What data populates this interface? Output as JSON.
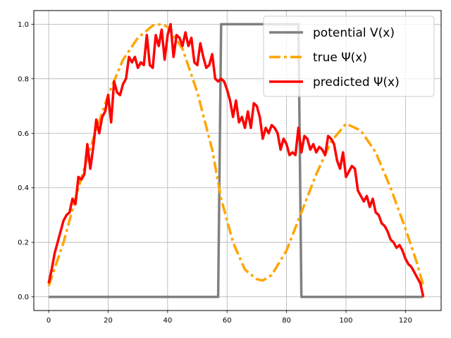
{
  "chart_data": {
    "type": "line",
    "title": "",
    "xlabel": "",
    "ylabel": "",
    "xlim": [
      -5,
      132
    ],
    "ylim": [
      -0.05,
      1.05
    ],
    "x_ticks": [
      0,
      20,
      40,
      60,
      80,
      100,
      120
    ],
    "y_ticks": [
      0.0,
      0.2,
      0.4,
      0.6,
      0.8,
      1.0
    ],
    "x_tick_labels": [
      "0",
      "20",
      "40",
      "60",
      "80",
      "100",
      "120"
    ],
    "y_tick_labels": [
      "0.0",
      "0.2",
      "0.4",
      "0.6",
      "0.8",
      "1.0"
    ],
    "grid": true,
    "legend_position": "top-right",
    "series": [
      {
        "name": "potential V(x)",
        "color": "#808080",
        "style": "solid",
        "x": [
          0,
          57,
          58,
          84,
          85,
          126
        ],
        "y": [
          0,
          0,
          1,
          1,
          0,
          0
        ]
      },
      {
        "name": "true Ψ(x)",
        "color": "#ffa500",
        "style": "dashdot",
        "x": [
          0,
          5,
          10,
          15,
          20,
          25,
          30,
          35,
          38,
          40,
          45,
          50,
          55,
          58,
          62,
          66,
          70,
          72,
          75,
          80,
          85,
          90,
          95,
          100,
          105,
          110,
          115,
          120,
          124,
          126
        ],
        "y": [
          0.04,
          0.2,
          0.4,
          0.58,
          0.74,
          0.87,
          0.95,
          0.995,
          1.0,
          0.99,
          0.91,
          0.75,
          0.54,
          0.36,
          0.2,
          0.1,
          0.065,
          0.06,
          0.08,
          0.17,
          0.31,
          0.45,
          0.57,
          0.635,
          0.61,
          0.53,
          0.4,
          0.25,
          0.12,
          0.04
        ]
      },
      {
        "name": "predicted Ψ(x)",
        "color": "#ff0000",
        "style": "solid",
        "x": [
          0,
          1,
          2,
          3,
          4,
          5,
          6,
          7,
          8,
          9,
          10,
          11,
          12,
          13,
          14,
          15,
          16,
          17,
          18,
          19,
          20,
          21,
          22,
          23,
          24,
          25,
          26,
          27,
          28,
          29,
          30,
          31,
          32,
          33,
          34,
          35,
          36,
          37,
          38,
          39,
          40,
          41,
          42,
          43,
          44,
          45,
          46,
          47,
          48,
          49,
          50,
          51,
          52,
          53,
          54,
          55,
          56,
          57,
          58,
          59,
          60,
          61,
          62,
          63,
          64,
          65,
          66,
          67,
          68,
          69,
          70,
          71,
          72,
          73,
          74,
          75,
          76,
          77,
          78,
          79,
          80,
          81,
          82,
          83,
          84,
          85,
          86,
          87,
          88,
          89,
          90,
          91,
          92,
          93,
          94,
          95,
          96,
          97,
          98,
          99,
          100,
          101,
          102,
          103,
          104,
          105,
          106,
          107,
          108,
          109,
          110,
          111,
          112,
          113,
          114,
          115,
          116,
          117,
          118,
          119,
          120,
          121,
          122,
          123,
          124,
          125,
          126
        ],
        "y": [
          0.05,
          0.1,
          0.16,
          0.2,
          0.24,
          0.28,
          0.3,
          0.31,
          0.36,
          0.34,
          0.44,
          0.43,
          0.45,
          0.56,
          0.47,
          0.55,
          0.65,
          0.6,
          0.66,
          0.68,
          0.74,
          0.64,
          0.79,
          0.75,
          0.74,
          0.78,
          0.8,
          0.88,
          0.86,
          0.88,
          0.84,
          0.86,
          0.85,
          0.96,
          0.85,
          0.84,
          0.96,
          0.92,
          0.98,
          0.87,
          0.96,
          1.0,
          0.88,
          0.96,
          0.95,
          0.92,
          0.97,
          0.92,
          0.95,
          0.86,
          0.85,
          0.93,
          0.88,
          0.84,
          0.85,
          0.89,
          0.8,
          0.79,
          0.8,
          0.79,
          0.76,
          0.72,
          0.66,
          0.72,
          0.64,
          0.66,
          0.62,
          0.68,
          0.62,
          0.71,
          0.7,
          0.66,
          0.58,
          0.62,
          0.6,
          0.63,
          0.62,
          0.6,
          0.54,
          0.58,
          0.56,
          0.52,
          0.53,
          0.52,
          0.62,
          0.53,
          0.59,
          0.58,
          0.54,
          0.56,
          0.53,
          0.55,
          0.54,
          0.52,
          0.59,
          0.58,
          0.56,
          0.5,
          0.47,
          0.53,
          0.44,
          0.46,
          0.48,
          0.47,
          0.39,
          0.37,
          0.35,
          0.37,
          0.33,
          0.36,
          0.31,
          0.3,
          0.27,
          0.26,
          0.24,
          0.21,
          0.2,
          0.18,
          0.19,
          0.17,
          0.14,
          0.12,
          0.11,
          0.09,
          0.07,
          0.05,
          0.0
        ]
      }
    ]
  }
}
